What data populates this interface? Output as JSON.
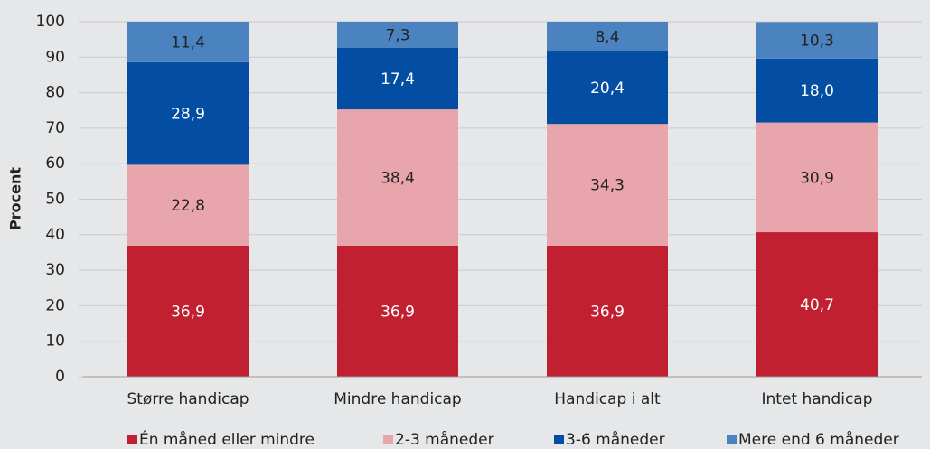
{
  "chart_data": {
    "type": "stacked_bar",
    "y_label": "Procent",
    "categories": [
      "Større handicap",
      "Mindre handicap",
      "Handicap i alt",
      "Intet handicap"
    ],
    "series": [
      {
        "name": "Én måned eller mindre",
        "color": "#c0202f",
        "label_color": "#ffffff",
        "values": [
          36.9,
          36.9,
          36.9,
          40.7
        ],
        "value_labels": [
          "36,9",
          "36,9",
          "36,9",
          "40,7"
        ]
      },
      {
        "name": "2-3 måneder",
        "color": "#e8a5ac",
        "label_color": "#222222",
        "values": [
          22.8,
          38.4,
          34.3,
          30.9
        ],
        "value_labels": [
          "22,8",
          "38,4",
          "34,3",
          "30,9"
        ]
      },
      {
        "name": "3-6 måneder",
        "color": "#034ea2",
        "label_color": "#ffffff",
        "values": [
          28.9,
          17.4,
          20.4,
          18.0
        ],
        "value_labels": [
          "28,9",
          "17,4",
          "20,4",
          "18,0"
        ]
      },
      {
        "name": "Mere end 6 måneder",
        "color": "#4a83bf",
        "label_color": "#222222",
        "values": [
          11.4,
          7.3,
          8.4,
          10.3
        ],
        "value_labels": [
          "11,4",
          "7,3",
          "8,4",
          "10,3"
        ]
      }
    ],
    "ylim": [
      0,
      100
    ],
    "yticks": [
      0,
      10,
      20,
      30,
      40,
      50,
      60,
      70,
      80,
      90,
      100
    ],
    "grid": true,
    "legend": "bottom"
  }
}
